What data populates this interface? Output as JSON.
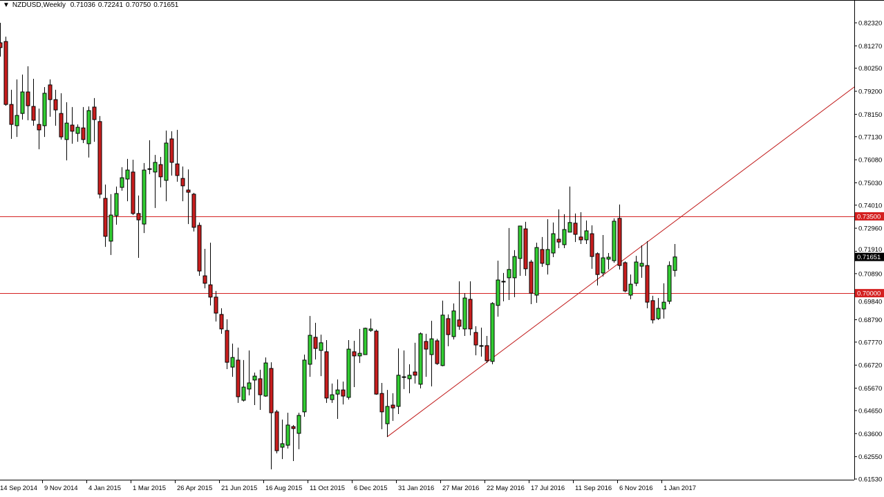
{
  "header": {
    "symbol": "NZDUSD,Weekly",
    "open": "0.71036",
    "high": "0.72241",
    "low": "0.70750",
    "close": "0.71651"
  },
  "chart_data": {
    "type": "candlestick",
    "symbol": "NZDUSD",
    "timeframe": "Weekly",
    "ylim": [
      0.6153,
      0.8232
    ],
    "grid": false,
    "colors": {
      "bull": "#32cd32",
      "bear": "#c81e1e",
      "outline": "#000000",
      "level_line": "#d42020",
      "trendline": "#c01818"
    },
    "y_ticks": [
      "0.82320",
      "0.81270",
      "0.80250",
      "0.79200",
      "0.78150",
      "0.77130",
      "0.76080",
      "0.75030",
      "0.74010",
      "0.72960",
      "0.71910",
      "0.70890",
      "0.69840",
      "0.68790",
      "0.67770",
      "0.66720",
      "0.65670",
      "0.64650",
      "0.63600",
      "0.62550",
      "0.61530"
    ],
    "x_ticks": [
      {
        "index": 0,
        "label": "14 Sep 2014"
      },
      {
        "index": 8,
        "label": "9 Nov 2014"
      },
      {
        "index": 16,
        "label": "4 Jan 2015"
      },
      {
        "index": 24,
        "label": "1 Mar 2015"
      },
      {
        "index": 32,
        "label": "26 Apr 2015"
      },
      {
        "index": 40,
        "label": "21 Jun 2015"
      },
      {
        "index": 48,
        "label": "16 Aug 2015"
      },
      {
        "index": 56,
        "label": "11 Oct 2015"
      },
      {
        "index": 64,
        "label": "6 Dec 2015"
      },
      {
        "index": 72,
        "label": "31 Jan 2016"
      },
      {
        "index": 80,
        "label": "27 Mar 2016"
      },
      {
        "index": 88,
        "label": "22 May 2016"
      },
      {
        "index": 96,
        "label": "17 Jul 2016"
      },
      {
        "index": 104,
        "label": "11 Sep 2016"
      },
      {
        "index": 112,
        "label": "6 Nov 2016"
      },
      {
        "index": 120,
        "label": "1 Jan 2017"
      }
    ],
    "levels": [
      {
        "price": 0.735,
        "label": "0.73500"
      },
      {
        "price": 0.7,
        "label": "0.70000"
      }
    ],
    "current_price": {
      "price": 0.71651,
      "label": "0.71651"
    },
    "trendline": {
      "from": {
        "index": 70,
        "price": 0.6345
      },
      "to": {
        "index": 155,
        "price": 0.7949
      }
    },
    "ohlc": [
      [
        0.8141,
        0.8232,
        0.8078,
        0.8119
      ],
      [
        0.8147,
        0.8169,
        0.7854,
        0.786
      ],
      [
        0.786,
        0.7927,
        0.7703,
        0.7769
      ],
      [
        0.7763,
        0.7974,
        0.7712,
        0.781
      ],
      [
        0.7819,
        0.7996,
        0.7791,
        0.7917
      ],
      [
        0.7917,
        0.8034,
        0.7788,
        0.7854
      ],
      [
        0.7851,
        0.7977,
        0.7763,
        0.7788
      ],
      [
        0.7769,
        0.7841,
        0.7656,
        0.7744
      ],
      [
        0.7763,
        0.7939,
        0.7712,
        0.7911
      ],
      [
        0.7949,
        0.7974,
        0.7804,
        0.7882
      ],
      [
        0.7882,
        0.7927,
        0.7763,
        0.7835
      ],
      [
        0.7819,
        0.7911,
        0.77,
        0.7712
      ],
      [
        0.77,
        0.787,
        0.7605,
        0.7775
      ],
      [
        0.7766,
        0.7848,
        0.7681,
        0.7738
      ],
      [
        0.7728,
        0.7769,
        0.769,
        0.7756
      ],
      [
        0.7753,
        0.7848,
        0.7684,
        0.77
      ],
      [
        0.7681,
        0.7851,
        0.7618,
        0.7832
      ],
      [
        0.7848,
        0.7889,
        0.769,
        0.7791
      ],
      [
        0.7782,
        0.7807,
        0.7432,
        0.7451
      ],
      [
        0.7432,
        0.7495,
        0.7211,
        0.7259
      ],
      [
        0.7237,
        0.7451,
        0.7174,
        0.7356
      ],
      [
        0.7353,
        0.7486,
        0.7312,
        0.7454
      ],
      [
        0.7482,
        0.7574,
        0.7467,
        0.7526
      ],
      [
        0.752,
        0.7612,
        0.7419,
        0.7561
      ],
      [
        0.7552,
        0.7608,
        0.7356,
        0.7363
      ],
      [
        0.7363,
        0.7445,
        0.7161,
        0.7334
      ],
      [
        0.7315,
        0.7593,
        0.7274,
        0.7561
      ],
      [
        0.7564,
        0.7697,
        0.7542,
        0.7567
      ],
      [
        0.7552,
        0.763,
        0.7388,
        0.7596
      ],
      [
        0.7586,
        0.7621,
        0.7482,
        0.753
      ],
      [
        0.7514,
        0.7741,
        0.7419,
        0.7684
      ],
      [
        0.7703,
        0.7738,
        0.7536,
        0.7596
      ],
      [
        0.7589,
        0.7744,
        0.7508,
        0.7536
      ],
      [
        0.7523,
        0.7577,
        0.7419,
        0.7489
      ],
      [
        0.747,
        0.7564,
        0.7315,
        0.746
      ],
      [
        0.7451,
        0.7457,
        0.7281,
        0.73
      ],
      [
        0.7309,
        0.7322,
        0.7079,
        0.7101
      ],
      [
        0.7079,
        0.7202,
        0.7022,
        0.7045
      ],
      [
        0.7038,
        0.723,
        0.6944,
        0.6982
      ],
      [
        0.6982,
        0.701,
        0.6871,
        0.6909
      ],
      [
        0.6903,
        0.6931,
        0.6815,
        0.6837
      ],
      [
        0.683,
        0.6881,
        0.6654,
        0.6685
      ],
      [
        0.6663,
        0.677,
        0.6619,
        0.6707
      ],
      [
        0.6695,
        0.6752,
        0.65,
        0.6528
      ],
      [
        0.6512,
        0.6695,
        0.6506,
        0.6572
      ],
      [
        0.6563,
        0.6739,
        0.6534,
        0.6591
      ],
      [
        0.6604,
        0.6638,
        0.649,
        0.6622
      ],
      [
        0.661,
        0.6651,
        0.6468,
        0.6537
      ],
      [
        0.6531,
        0.6707,
        0.6528,
        0.6682
      ],
      [
        0.6657,
        0.6685,
        0.6197,
        0.6455
      ],
      [
        0.6459,
        0.6468,
        0.627,
        0.6282
      ],
      [
        0.6298,
        0.6424,
        0.6244,
        0.6314
      ],
      [
        0.6307,
        0.6455,
        0.6292,
        0.6399
      ],
      [
        0.6392,
        0.6399,
        0.6235,
        0.6383
      ],
      [
        0.6361,
        0.6455,
        0.6289,
        0.6443
      ],
      [
        0.6459,
        0.672,
        0.6437,
        0.6695
      ],
      [
        0.6676,
        0.6896,
        0.6619,
        0.6808
      ],
      [
        0.6799,
        0.6865,
        0.6698,
        0.6748
      ],
      [
        0.6739,
        0.6811,
        0.6622,
        0.6774
      ],
      [
        0.6733,
        0.6786,
        0.65,
        0.6522
      ],
      [
        0.6515,
        0.6588,
        0.65,
        0.6537
      ],
      [
        0.654,
        0.6607,
        0.6427,
        0.6559
      ],
      [
        0.6559,
        0.6597,
        0.6493,
        0.6531
      ],
      [
        0.6525,
        0.6786,
        0.6515,
        0.6745
      ],
      [
        0.6733,
        0.6783,
        0.6572,
        0.6714
      ],
      [
        0.6714,
        0.6837,
        0.6682,
        0.6726
      ],
      [
        0.672,
        0.6843,
        0.672,
        0.684
      ],
      [
        0.683,
        0.6884,
        0.6824,
        0.6837
      ],
      [
        0.6827,
        0.6834,
        0.6537,
        0.654
      ],
      [
        0.6543,
        0.6591,
        0.638,
        0.6459
      ],
      [
        0.6405,
        0.6559,
        0.6345,
        0.6484
      ],
      [
        0.649,
        0.6544,
        0.6418,
        0.6477
      ],
      [
        0.6484,
        0.6748,
        0.6449,
        0.6626
      ],
      [
        0.6616,
        0.6739,
        0.6563,
        0.6619
      ],
      [
        0.661,
        0.6676,
        0.6544,
        0.6626
      ],
      [
        0.6641,
        0.6774,
        0.6588,
        0.6626
      ],
      [
        0.6585,
        0.6821,
        0.6566,
        0.6815
      ],
      [
        0.678,
        0.6815,
        0.6619,
        0.6745
      ],
      [
        0.672,
        0.6874,
        0.6575,
        0.6792
      ],
      [
        0.6783,
        0.6792,
        0.6673,
        0.6679
      ],
      [
        0.667,
        0.6966,
        0.6667,
        0.69
      ],
      [
        0.6884,
        0.6903,
        0.6758,
        0.6811
      ],
      [
        0.6802,
        0.6953,
        0.6789,
        0.6919
      ],
      [
        0.6878,
        0.7054,
        0.6833,
        0.6849
      ],
      [
        0.6837,
        0.7,
        0.6805,
        0.6978
      ],
      [
        0.6972,
        0.7054,
        0.6808,
        0.6837
      ],
      [
        0.6821,
        0.6849,
        0.6717,
        0.6764
      ],
      [
        0.6761,
        0.6843,
        0.6711,
        0.6761
      ],
      [
        0.6761,
        0.6805,
        0.6682,
        0.6692
      ],
      [
        0.6689,
        0.6959,
        0.6676,
        0.6953
      ],
      [
        0.6944,
        0.7148,
        0.6893,
        0.706
      ],
      [
        0.7051,
        0.7092,
        0.6963,
        0.7054
      ],
      [
        0.707,
        0.7297,
        0.6969,
        0.7108
      ],
      [
        0.707,
        0.7196,
        0.6982,
        0.7167
      ],
      [
        0.7158,
        0.7306,
        0.7079,
        0.7306
      ],
      [
        0.7293,
        0.7325,
        0.7079,
        0.7111
      ],
      [
        0.7142,
        0.7152,
        0.695,
        0.7
      ],
      [
        0.6991,
        0.723,
        0.6956,
        0.7208
      ],
      [
        0.7199,
        0.7256,
        0.712,
        0.7136
      ],
      [
        0.713,
        0.7337,
        0.7085,
        0.7199
      ],
      [
        0.7183,
        0.7322,
        0.7164,
        0.7271
      ],
      [
        0.7246,
        0.7382,
        0.7205,
        0.7233
      ],
      [
        0.7221,
        0.736,
        0.7205,
        0.729
      ],
      [
        0.7278,
        0.7486,
        0.7278,
        0.7322
      ],
      [
        0.7319,
        0.7363,
        0.7233,
        0.7268
      ],
      [
        0.7256,
        0.7369,
        0.7224,
        0.7243
      ],
      [
        0.7243,
        0.7331,
        0.7224,
        0.7284
      ],
      [
        0.7271,
        0.7309,
        0.7111,
        0.7167
      ],
      [
        0.718,
        0.7186,
        0.7035,
        0.7085
      ],
      [
        0.7092,
        0.7265,
        0.7076,
        0.7161
      ],
      [
        0.7155,
        0.7183,
        0.7108,
        0.7164
      ],
      [
        0.7148,
        0.7341,
        0.7139,
        0.7328
      ],
      [
        0.7341,
        0.7404,
        0.7108,
        0.7126
      ],
      [
        0.7139,
        0.7145,
        0.7004,
        0.701
      ],
      [
        0.6991,
        0.7085,
        0.6972,
        0.7041
      ],
      [
        0.7045,
        0.717,
        0.7032,
        0.7142
      ],
      [
        0.7123,
        0.7218,
        0.707,
        0.7136
      ],
      [
        0.7126,
        0.7237,
        0.6931,
        0.6959
      ],
      [
        0.6966,
        0.6988,
        0.6862,
        0.6878
      ],
      [
        0.6884,
        0.6978,
        0.6878,
        0.6931
      ],
      [
        0.6928,
        0.7045,
        0.6884,
        0.6959
      ],
      [
        0.6963,
        0.7145,
        0.695,
        0.7126
      ],
      [
        0.71036,
        0.72241,
        0.7075,
        0.71651
      ]
    ]
  }
}
